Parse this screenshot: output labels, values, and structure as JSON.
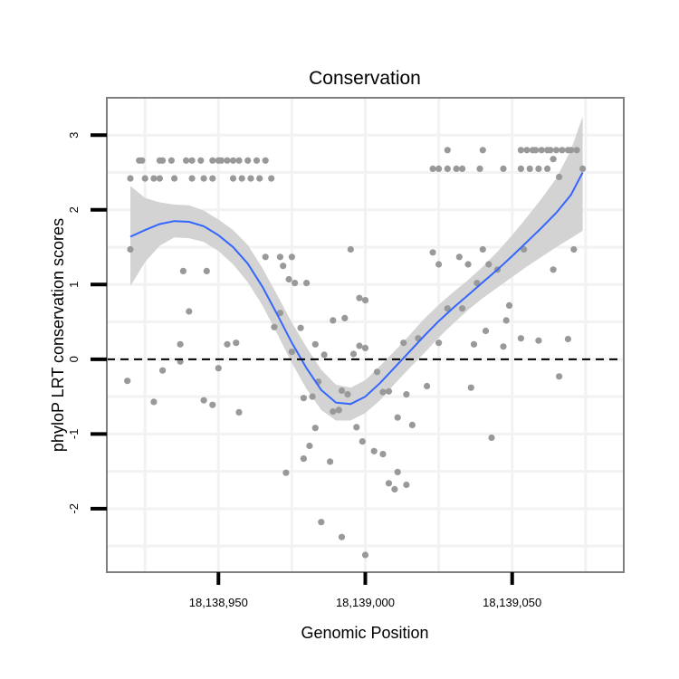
{
  "chart_data": {
    "type": "scatter",
    "title": "Conservation",
    "xlabel": "Genomic Position",
    "ylabel": "phyloP LRT conservation scores",
    "xlim": [
      18138912,
      18139088
    ],
    "ylim": [
      -2.85,
      3.5
    ],
    "x_ticks": [
      18138950,
      18139000,
      18139050
    ],
    "x_tick_labels": [
      "18,138,950",
      "18,139,000",
      "18,139,050"
    ],
    "y_ticks": [
      -2,
      -1,
      0,
      1,
      2,
      3
    ],
    "y_tick_labels": [
      "-2",
      "-1",
      "0",
      "1",
      "2",
      "3"
    ],
    "reference_line": {
      "y": 0,
      "style": "dashed",
      "color": "#000000"
    },
    "grid": true,
    "colors": {
      "points": "#999999",
      "smooth_line": "#3366ff",
      "confidence_band": "#d3d3d3",
      "panel_border": "#7f7f7f",
      "grid": "#f2f2f2"
    },
    "series": [
      {
        "type": "scatter",
        "points": [
          [
            18138920,
            2.42
          ],
          [
            18138923,
            2.66
          ],
          [
            18138924,
            2.66
          ],
          [
            18138930,
            2.66
          ],
          [
            18138931,
            2.66
          ],
          [
            18138934,
            2.66
          ],
          [
            18138925,
            2.42
          ],
          [
            18138928,
            2.42
          ],
          [
            18138930,
            2.42
          ],
          [
            18138939,
            2.66
          ],
          [
            18138944,
            2.66
          ],
          [
            18138948,
            2.66
          ],
          [
            18138951,
            2.66
          ],
          [
            18138953,
            2.66
          ],
          [
            18138935,
            2.42
          ],
          [
            18138941,
            2.42
          ],
          [
            18138945,
            2.42
          ],
          [
            18138948,
            2.42
          ],
          [
            18138955,
            2.42
          ],
          [
            18138958,
            2.42
          ],
          [
            18138961,
            2.42
          ],
          [
            18138964,
            2.42
          ],
          [
            18138968,
            2.42
          ],
          [
            18138955,
            2.66
          ],
          [
            18138957,
            2.66
          ],
          [
            18138960,
            2.66
          ],
          [
            18138963,
            2.66
          ],
          [
            18138966,
            2.66
          ],
          [
            18138941,
            2.66
          ],
          [
            18138950,
            2.66
          ],
          [
            18138920,
            1.47
          ],
          [
            18138938,
            1.18
          ],
          [
            18138946,
            1.18
          ],
          [
            18138971,
            1.37
          ],
          [
            18138975,
            1.37
          ],
          [
            18138974,
            1.07
          ],
          [
            18138972,
            1.25
          ],
          [
            18138976,
            1.02
          ],
          [
            18138980,
            1.02
          ],
          [
            18138966,
            1.37
          ],
          [
            18138969,
            0.43
          ],
          [
            18138971,
            0.62
          ],
          [
            18138978,
            0.42
          ],
          [
            18138975,
            0.1
          ],
          [
            18138937,
            0.2
          ],
          [
            18138940,
            0.64
          ],
          [
            18138953,
            0.2
          ],
          [
            18138956,
            0.22
          ],
          [
            18138957,
            -0.71
          ],
          [
            18138945,
            -0.55
          ],
          [
            18138948,
            -0.61
          ],
          [
            18138950,
            -0.12
          ],
          [
            18138931,
            -0.15
          ],
          [
            18138928,
            -0.57
          ],
          [
            18138937,
            -0.03
          ],
          [
            18138919,
            -0.29
          ],
          [
            18138995,
            1.47
          ],
          [
            18138998,
            0.82
          ],
          [
            18139000,
            0.79
          ],
          [
            18138989,
            0.52
          ],
          [
            18138993,
            0.55
          ],
          [
            18138986,
            0.06
          ],
          [
            18138984,
            -0.3
          ],
          [
            18138982,
            -0.5
          ],
          [
            18138979,
            -0.52
          ],
          [
            18138983,
            -0.92
          ],
          [
            18138981,
            -1.16
          ],
          [
            18138979,
            -1.33
          ],
          [
            18138973,
            -1.52
          ],
          [
            18138988,
            -1.37
          ],
          [
            18138991,
            -0.68
          ],
          [
            18138989,
            -0.7
          ],
          [
            18138992,
            -0.42
          ],
          [
            18138994,
            -0.47
          ],
          [
            18138996,
            0.07
          ],
          [
            18138998,
            0.18
          ],
          [
            18139000,
            0.15
          ],
          [
            18138997,
            -0.91
          ],
          [
            18138999,
            -1.1
          ],
          [
            18139003,
            -1.23
          ],
          [
            18139006,
            -1.27
          ],
          [
            18139008,
            -1.66
          ],
          [
            18139010,
            -1.74
          ],
          [
            18139011,
            -1.51
          ],
          [
            18139014,
            -1.68
          ],
          [
            18139004,
            -0.17
          ],
          [
            18139006,
            -0.44
          ],
          [
            18139008,
            -0.43
          ],
          [
            18139011,
            -0.78
          ],
          [
            18139013,
            0.22
          ],
          [
            18139014,
            -0.47
          ],
          [
            18139016,
            -0.88
          ],
          [
            18139018,
            0.28
          ],
          [
            18139021,
            -0.36
          ],
          [
            18139023,
            1.43
          ],
          [
            18139025,
            1.27
          ],
          [
            18139025,
            0.22
          ],
          [
            18139028,
            0.68
          ],
          [
            18139032,
            1.37
          ],
          [
            18139033,
            0.68
          ],
          [
            18139035,
            1.27
          ],
          [
            18139037,
            0.2
          ],
          [
            18139038,
            1.02
          ],
          [
            18139040,
            1.47
          ],
          [
            18139041,
            0.38
          ],
          [
            18139042,
            1.27
          ],
          [
            18139043,
            -1.05
          ],
          [
            18139045,
            1.2
          ],
          [
            18139047,
            0.17
          ],
          [
            18139048,
            0.52
          ],
          [
            18139049,
            0.72
          ],
          [
            18139036,
            -0.38
          ],
          [
            18139053,
            0.28
          ],
          [
            18139054,
            1.47
          ],
          [
            18139059,
            0.25
          ],
          [
            18139064,
            1.2
          ],
          [
            18139066,
            -0.23
          ],
          [
            18139069,
            0.27
          ],
          [
            18139071,
            1.47
          ],
          [
            18139023,
            2.55
          ],
          [
            18139025,
            2.55
          ],
          [
            18139028,
            2.55
          ],
          [
            18139031,
            2.55
          ],
          [
            18139033,
            2.55
          ],
          [
            18139039,
            2.55
          ],
          [
            18139047,
            2.55
          ],
          [
            18139053,
            2.55
          ],
          [
            18139056,
            2.55
          ],
          [
            18139059,
            2.55
          ],
          [
            18139062,
            2.55
          ],
          [
            18139074,
            2.55
          ],
          [
            18139028,
            2.8
          ],
          [
            18139040,
            2.8
          ],
          [
            18139053,
            2.8
          ],
          [
            18139055,
            2.8
          ],
          [
            18139057,
            2.8
          ],
          [
            18139058,
            2.8
          ],
          [
            18139060,
            2.8
          ],
          [
            18139062,
            2.8
          ],
          [
            18139063,
            2.8
          ],
          [
            18139065,
            2.8
          ],
          [
            18139067,
            2.8
          ],
          [
            18139069,
            2.8
          ],
          [
            18139070,
            2.8
          ],
          [
            18139072,
            2.8
          ],
          [
            18139064,
            2.68
          ],
          [
            18139066,
            2.44
          ],
          [
            18138985,
            -2.18
          ],
          [
            18138992,
            -2.38
          ],
          [
            18139000,
            -2.62
          ],
          [
            18138983,
            0.2
          ]
        ]
      },
      {
        "type": "smooth",
        "x": [
          18138920,
          18138925,
          18138930,
          18138935,
          18138940,
          18138945,
          18138950,
          18138955,
          18138960,
          18138965,
          18138970,
          18138975,
          18138980,
          18138985,
          18138990,
          18138995,
          18139000,
          18139005,
          18139010,
          18139015,
          18139020,
          18139025,
          18139030,
          18139035,
          18139040,
          18139045,
          18139050,
          18139055,
          18139060,
          18139065,
          18139070,
          18139074
        ],
        "y": [
          1.64,
          1.73,
          1.81,
          1.85,
          1.84,
          1.78,
          1.66,
          1.5,
          1.28,
          0.97,
          0.6,
          0.22,
          -0.12,
          -0.41,
          -0.58,
          -0.6,
          -0.5,
          -0.32,
          -0.11,
          0.1,
          0.31,
          0.51,
          0.69,
          0.86,
          1.03,
          1.2,
          1.38,
          1.57,
          1.76,
          1.96,
          2.2,
          2.5
        ],
        "lower": [
          0.98,
          1.3,
          1.52,
          1.63,
          1.62,
          1.57,
          1.45,
          1.27,
          1.03,
          0.72,
          0.34,
          -0.05,
          -0.4,
          -0.68,
          -0.82,
          -0.82,
          -0.72,
          -0.55,
          -0.33,
          -0.12,
          0.08,
          0.29,
          0.48,
          0.66,
          0.82,
          0.96,
          1.1,
          1.24,
          1.37,
          1.5,
          1.62,
          1.72
        ],
        "upper": [
          2.32,
          2.16,
          2.1,
          2.07,
          2.06,
          1.99,
          1.87,
          1.73,
          1.53,
          1.22,
          0.86,
          0.49,
          0.16,
          -0.14,
          -0.34,
          -0.38,
          -0.28,
          -0.09,
          0.11,
          0.32,
          0.54,
          0.73,
          0.9,
          1.06,
          1.24,
          1.44,
          1.66,
          1.9,
          2.15,
          2.42,
          2.8,
          3.25
        ]
      }
    ]
  }
}
